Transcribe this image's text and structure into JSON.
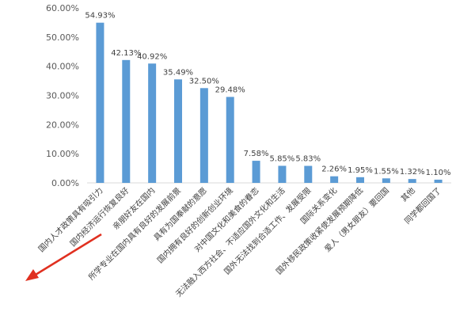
{
  "chart_data": {
    "type": "bar",
    "title": "",
    "xlabel": "",
    "ylabel": "",
    "ylim": [
      0,
      60
    ],
    "yticks": [
      "0.00%",
      "10.00%",
      "20.00%",
      "30.00%",
      "40.00%",
      "50.00%",
      "60.00%"
    ],
    "grid": false,
    "bar_color": "#5b9bd5",
    "arrow_color": "#e03020",
    "categories": [
      "国内人才政策具有吸引力",
      "国内经济运行恢复良好",
      "亲朋好友在国内",
      "所学专业在国内具有良好的发展前景",
      "具有为国奉献的意愿",
      "国内拥有良好的创新创业环境",
      "对中国文化和美食的眷恋",
      "无法融入西方社会、不适应国外文化和生活",
      "国外无法找到合适工作、发展受限",
      "国际关系变化",
      "国外移民政策收紧使发展预期降低",
      "爱人（男女朋友）要回国",
      "其他",
      "同学都回国了"
    ],
    "values": [
      54.93,
      42.13,
      40.92,
      35.49,
      32.5,
      29.48,
      7.58,
      5.85,
      5.83,
      2.26,
      1.95,
      1.55,
      1.32,
      1.1
    ],
    "data_labels": [
      "54.93%",
      "42.13%",
      "40.92%",
      "35.49%",
      "32.50%",
      "29.48%",
      "7.58%",
      "5.85%",
      "5.83%",
      "2.26%",
      "1.95%",
      "1.55%",
      "1.32%",
      "1.10%"
    ]
  }
}
